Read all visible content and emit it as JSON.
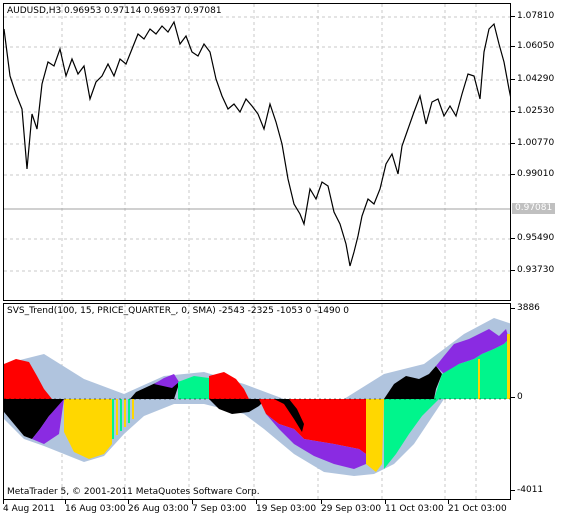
{
  "main_chart": {
    "label": "AUDUSD,H3  0.96953 0.97114 0.96937 0.97081",
    "price_labels": [
      "1.07810",
      "1.06050",
      "1.04290",
      "1.02530",
      "1.00770",
      "0.99010",
      "0.95490",
      "0.93730"
    ],
    "current_price": "0.97081",
    "colors": {
      "line": "#000000",
      "grid": "#c8c8c8",
      "current_line": "#a0a0a0"
    }
  },
  "indicator": {
    "label": "SVS_Trend(100, 15, PRICE_QUARTER_, 0, SMA) -2543 -2325 -1053 0 -1490 0",
    "axis_labels": [
      "3886",
      "0",
      "-4011"
    ],
    "colors": {
      "red": "#ff0000",
      "black": "#000000",
      "purple": "#8a2be2",
      "gold": "#ffd700",
      "green": "#00f58c",
      "band": "#b0c4de"
    }
  },
  "copyright": "MetaTrader 5, © 2001-2011 MetaQuotes Software Corp.",
  "time_labels": [
    "4 Aug 2011",
    "16 Aug 03:00",
    "26 Aug 03:00",
    "7 Sep 03:00",
    "19 Sep 03:00",
    "29 Sep 03:00",
    "11 Oct 03:00",
    "21 Oct 03:00"
  ]
}
